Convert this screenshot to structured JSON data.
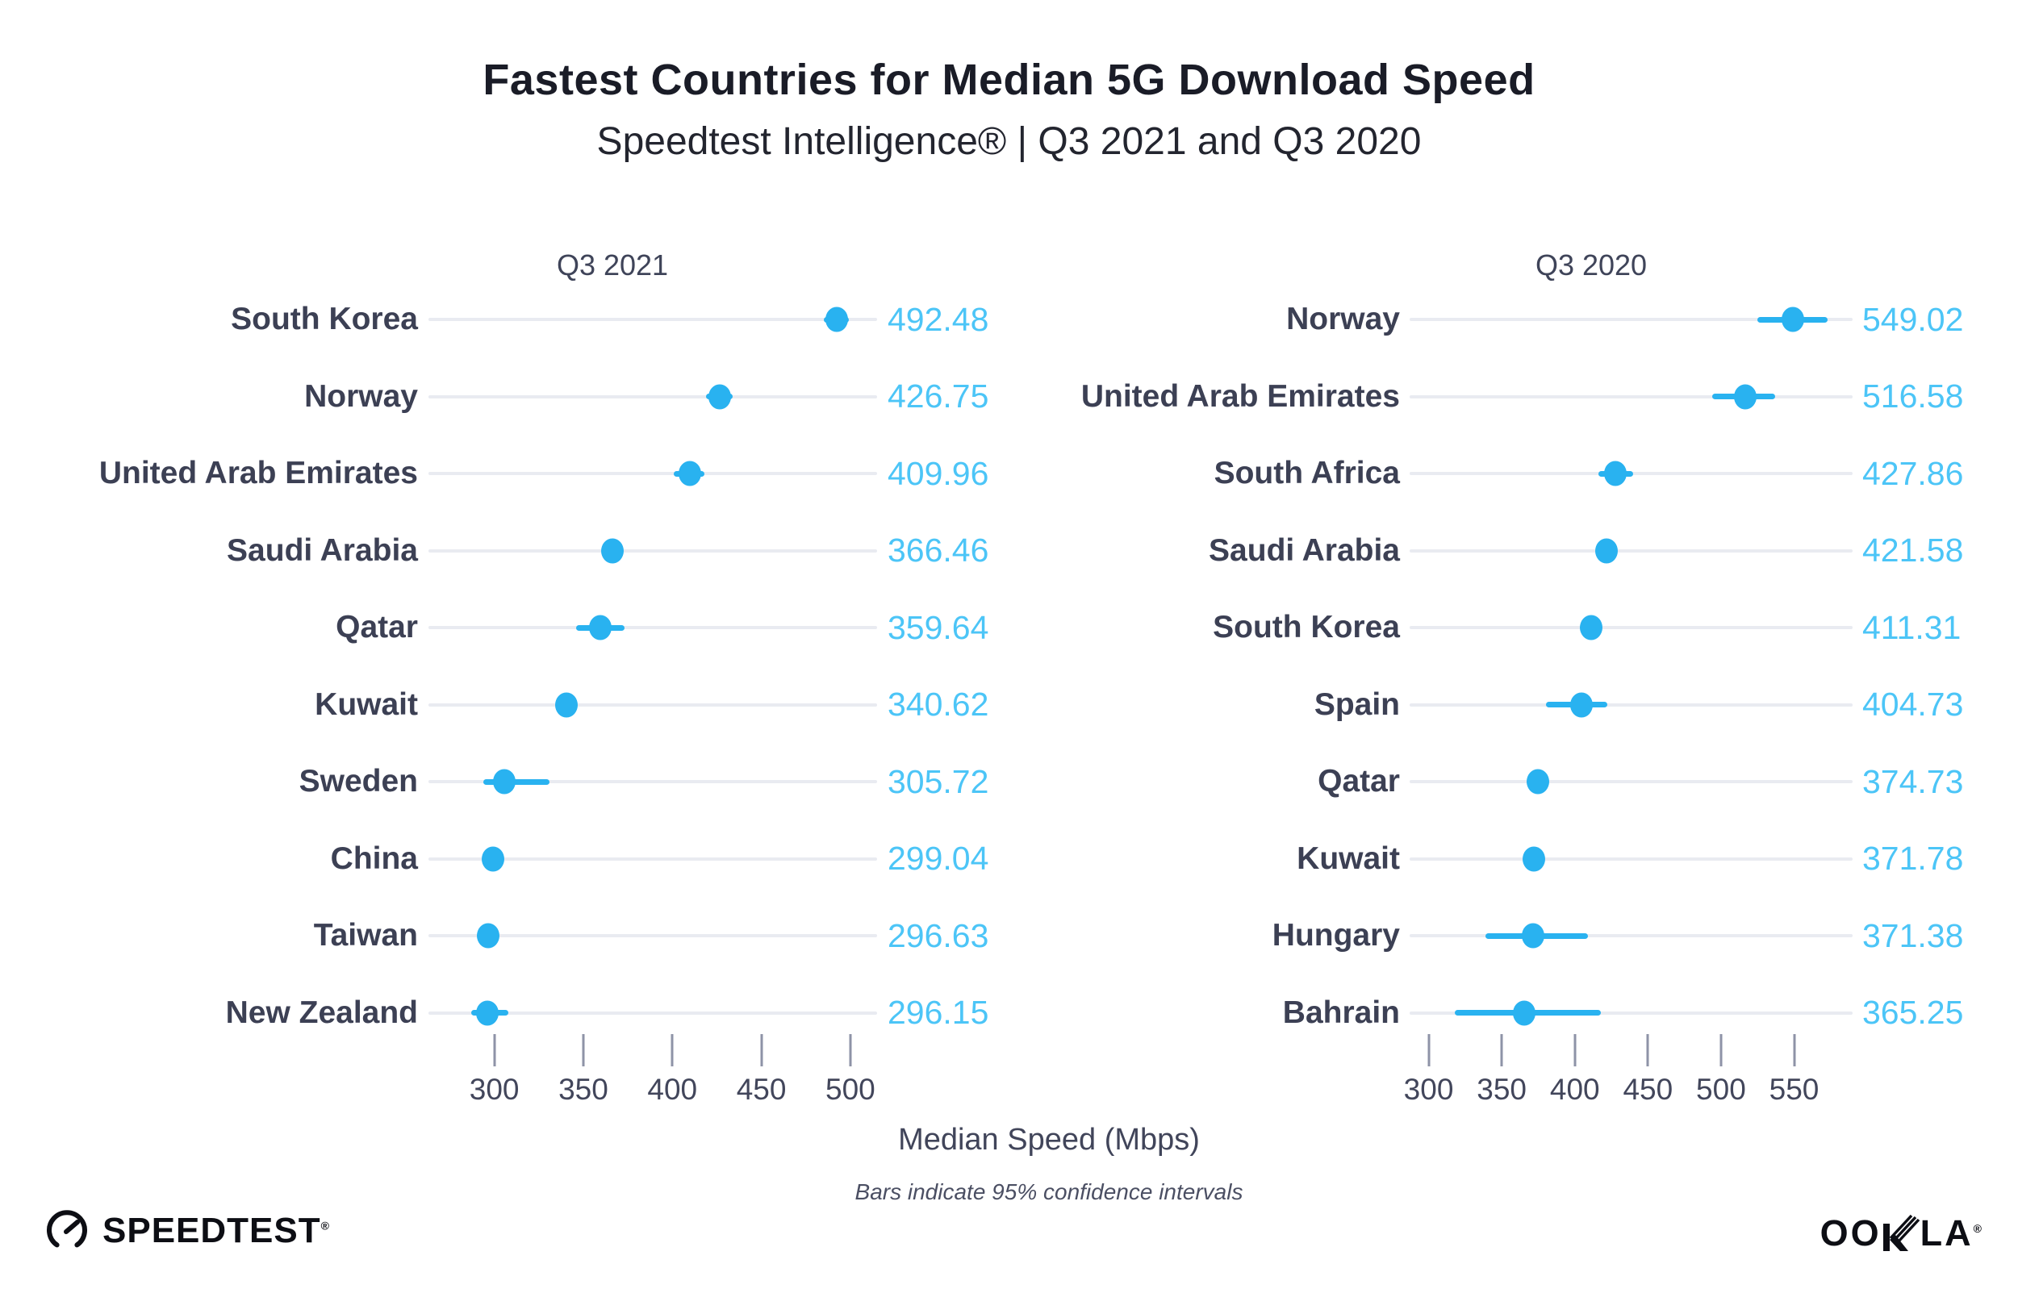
{
  "title": "Fastest Countries for Median 5G Download Speed",
  "subtitle": "Speedtest Intelligence® | Q3 2021 and Q3 2020",
  "xlabel": "Median Speed (Mbps)",
  "footnote": "Bars indicate 95% confidence intervals",
  "branding": {
    "speedtest_text": "SPEEDTEST",
    "speedtest_mark": "®",
    "ookla_prefix": "OO",
    "ookla_suffix": "LA",
    "ookla_mark": "®"
  },
  "colors": {
    "accent": "#29b2f0",
    "value_text": "#4cc5f7",
    "country_text": "#3c4054",
    "heading_text": "#1a1c27",
    "axis_text": "#42465b",
    "track": "#e9ebf1",
    "tick": "#8e93a7",
    "logo": "#0d0e14"
  },
  "chart_data": [
    {
      "type": "scatter",
      "panel_title": "Q3 2021",
      "orientation": "horizontal-dot-plot",
      "xlabel": "Median Speed (Mbps)",
      "xlim": [
        263,
        515
      ],
      "ticks": [
        300,
        350,
        400,
        450,
        500
      ],
      "ci_meaning": "95% confidence interval",
      "points": [
        {
          "country": "South Korea",
          "value": 492.48,
          "ci": [
            485,
            499
          ]
        },
        {
          "country": "Norway",
          "value": 426.75,
          "ci": [
            419,
            434
          ]
        },
        {
          "country": "United Arab Emirates",
          "value": 409.96,
          "ci": [
            401,
            418
          ]
        },
        {
          "country": "Saudi Arabia",
          "value": 366.46,
          "ci": [
            362,
            371
          ]
        },
        {
          "country": "Qatar",
          "value": 359.64,
          "ci": [
            346,
            373
          ]
        },
        {
          "country": "Kuwait",
          "value": 340.62,
          "ci": [
            336,
            345
          ]
        },
        {
          "country": "Sweden",
          "value": 305.72,
          "ci": [
            294,
            331
          ]
        },
        {
          "country": "China",
          "value": 299.04,
          "ci": [
            295,
            303
          ]
        },
        {
          "country": "Taiwan",
          "value": 296.63,
          "ci": [
            293,
            300
          ]
        },
        {
          "country": "New Zealand",
          "value": 296.15,
          "ci": [
            287,
            308
          ]
        }
      ]
    },
    {
      "type": "scatter",
      "panel_title": "Q3 2020",
      "orientation": "horizontal-dot-plot",
      "xlabel": "Median Speed (Mbps)",
      "xlim": [
        287,
        590
      ],
      "ticks": [
        300,
        350,
        400,
        450,
        500,
        550
      ],
      "ci_meaning": "95% confidence interval",
      "points": [
        {
          "country": "Norway",
          "value": 549.02,
          "ci": [
            525,
            573
          ]
        },
        {
          "country": "United Arab Emirates",
          "value": 516.58,
          "ci": [
            494,
            537
          ]
        },
        {
          "country": "South Africa",
          "value": 427.86,
          "ci": [
            416,
            440
          ]
        },
        {
          "country": "Saudi Arabia",
          "value": 421.58,
          "ci": [
            417,
            426
          ]
        },
        {
          "country": "South Korea",
          "value": 411.31,
          "ci": [
            407,
            415
          ]
        },
        {
          "country": "Spain",
          "value": 404.73,
          "ci": [
            380,
            422
          ]
        },
        {
          "country": "Qatar",
          "value": 374.73,
          "ci": [
            368,
            381
          ]
        },
        {
          "country": "Kuwait",
          "value": 371.78,
          "ci": [
            367,
            376
          ]
        },
        {
          "country": "Hungary",
          "value": 371.38,
          "ci": [
            339,
            409
          ]
        },
        {
          "country": "Bahrain",
          "value": 365.25,
          "ci": [
            318,
            418
          ]
        }
      ]
    }
  ]
}
